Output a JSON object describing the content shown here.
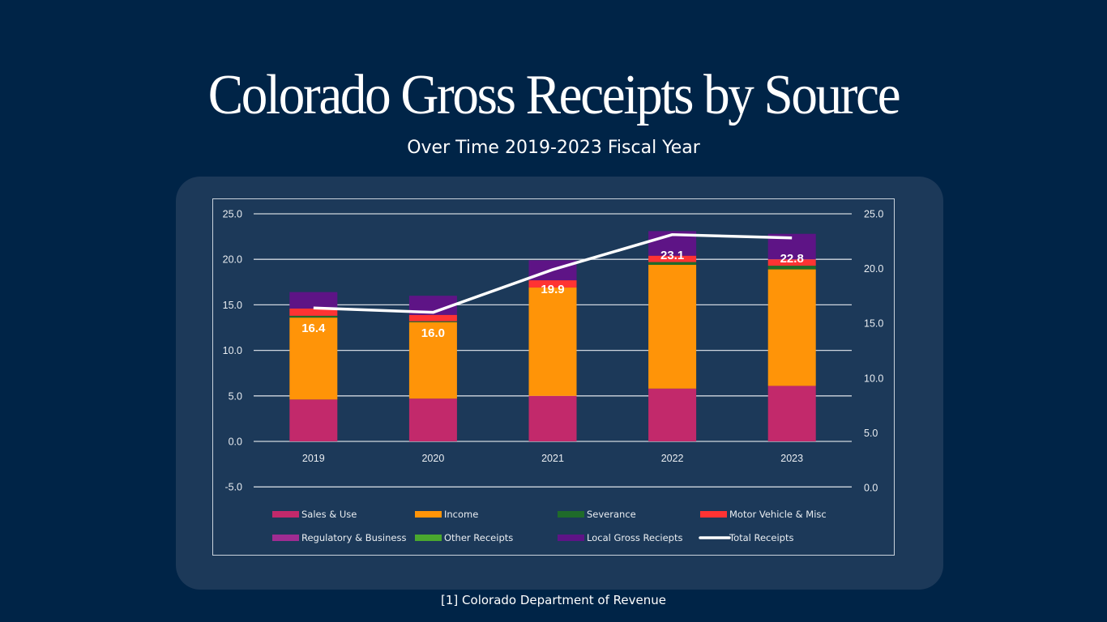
{
  "header": {
    "title": "Colorado Gross Receipts by Source",
    "subtitle": "Over Time 2019-2023 Fiscal Year"
  },
  "footnote": "[1] Colorado Department of Revenue",
  "chart_data": {
    "type": "bar",
    "stacked": true,
    "title": "Colorado Gross Receipts by Source",
    "subtitle": "Over Time 2019-2023 Fiscal Year",
    "xlabel": "",
    "ylabel": "",
    "categories": [
      "2019",
      "2020",
      "2021",
      "2022",
      "2023"
    ],
    "y_left": {
      "ylim": [
        -5,
        25
      ],
      "ticks": [
        "25.0",
        "20.0",
        "15.0",
        "10.0",
        "5.0",
        "0.0",
        "-5.0"
      ],
      "tick_values": [
        25,
        20,
        15,
        10,
        5,
        0,
        -5
      ]
    },
    "y_right": {
      "ylim": [
        0,
        25
      ],
      "ticks": [
        "25.0",
        "20.0",
        "15.0",
        "10.0",
        "5.0",
        "0.0"
      ],
      "tick_values": [
        25,
        20,
        15,
        10,
        5,
        0
      ]
    },
    "grid": true,
    "legend_position": "bottom",
    "series": [
      {
        "name": "Sales & Use",
        "color": "#c2296b",
        "values": [
          4.6,
          4.7,
          5.0,
          5.8,
          6.1
        ]
      },
      {
        "name": "Income",
        "color": "#ff9408",
        "values": [
          9.0,
          8.4,
          11.9,
          13.6,
          12.8
        ]
      },
      {
        "name": "Severance",
        "color": "#1f6b2a",
        "values": [
          0.2,
          0.1,
          0.0,
          0.3,
          0.4
        ]
      },
      {
        "name": "Motor Vehicle & Misc",
        "color": "#ff3333",
        "values": [
          0.8,
          0.7,
          0.8,
          0.7,
          0.7
        ]
      },
      {
        "name": "Regulatory & Business",
        "color": "#a02c92",
        "values": [
          0.0,
          0.0,
          0.0,
          0.0,
          0.0
        ]
      },
      {
        "name": "Other Receipts",
        "color": "#4aa82e",
        "values": [
          0.0,
          0.0,
          0.0,
          0.0,
          0.0
        ]
      },
      {
        "name": "Local Gross Reciepts",
        "color": "#5e1486",
        "values": [
          1.8,
          2.1,
          2.2,
          2.7,
          2.8
        ]
      }
    ],
    "line_series": {
      "name": "Total Receipts",
      "color": "#ffffff",
      "axis": "right",
      "values": [
        16.4,
        16.0,
        19.9,
        23.1,
        22.8
      ]
    },
    "data_labels": [
      "16.4",
      "16.0",
      "19.9",
      "23.1",
      "22.8"
    ]
  }
}
